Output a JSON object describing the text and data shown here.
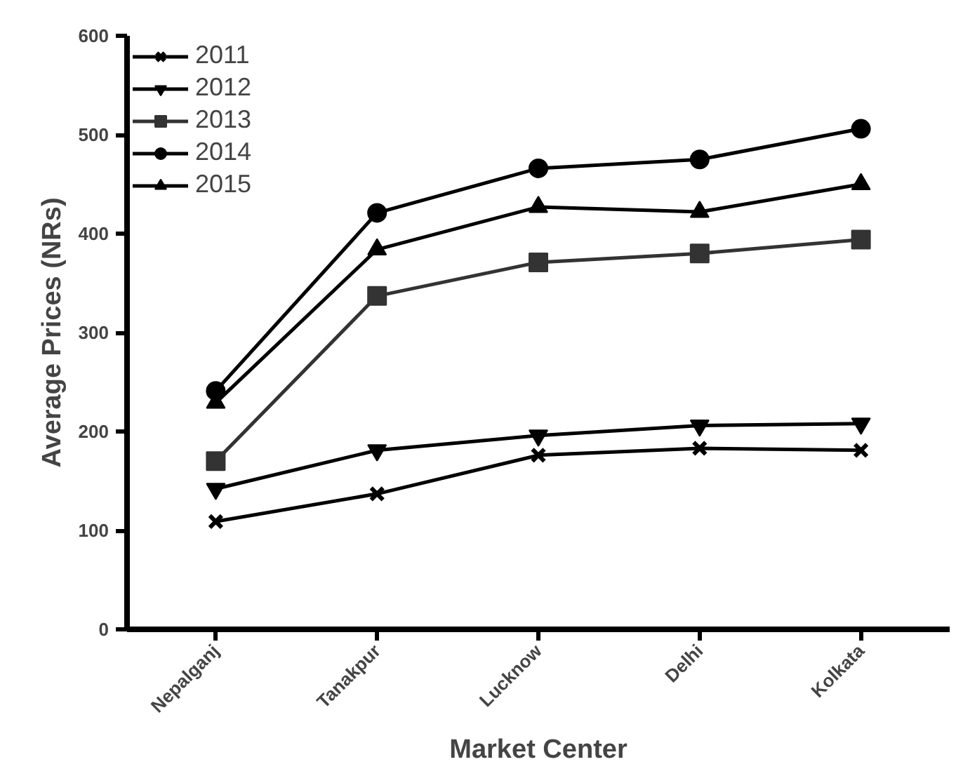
{
  "chart_data": {
    "type": "line",
    "xlabel": "Market Center",
    "ylabel": "Average Prices (NRs)",
    "categories": [
      "Nepalganj",
      "Tanakpur",
      "Lucknow",
      "Delhi",
      "Kolkata"
    ],
    "series": [
      {
        "name": "2011",
        "color": "#000000",
        "marker": "cross",
        "values": [
          109,
          137,
          176,
          183,
          181
        ]
      },
      {
        "name": "2012",
        "color": "#000000",
        "marker": "triangle_down",
        "values": [
          142,
          181,
          196,
          206,
          208
        ]
      },
      {
        "name": "2013",
        "color": "#333333",
        "marker": "square",
        "values": [
          170,
          337,
          371,
          380,
          394
        ]
      },
      {
        "name": "2014",
        "color": "#000000",
        "marker": "circle",
        "values": [
          241,
          421,
          466,
          475,
          506
        ]
      },
      {
        "name": "2015",
        "color": "#000000",
        "marker": "triangle",
        "values": [
          229,
          384,
          427,
          422,
          450
        ]
      }
    ],
    "ylim": [
      0,
      600
    ],
    "yticks": [
      0,
      100,
      200,
      300,
      400,
      500,
      600
    ],
    "grid": false,
    "legend": "top left",
    "line_style": "solid"
  }
}
